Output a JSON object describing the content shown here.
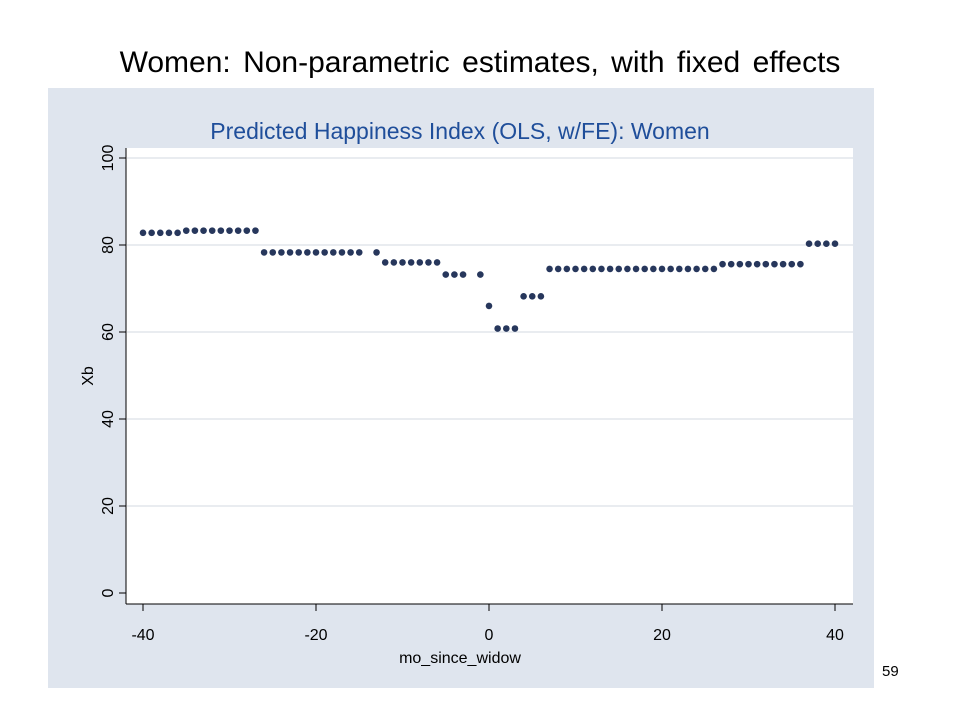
{
  "slide": {
    "title": "Women: Non-parametric estimates, with fixed effects",
    "page_number": "59"
  },
  "chart_data": {
    "type": "scatter",
    "title": "Predicted Happiness Index (OLS, w/FE): Women",
    "xlabel": "mo_since_widow",
    "ylabel": "Xb",
    "xlim": [
      -41,
      41
    ],
    "ylim": [
      0,
      102
    ],
    "xticks": [
      -40,
      -20,
      0,
      20,
      40
    ],
    "yticks": [
      0,
      20,
      40,
      60,
      80,
      100
    ],
    "grid": true,
    "colors": {
      "background": "#dfe5ee",
      "plot_region": "#ffffff",
      "marker": "#27375c",
      "title": "#1f4e9a"
    },
    "series": [
      {
        "points": [
          [
            -40,
            82.8
          ],
          [
            -39,
            82.8
          ],
          [
            -38,
            82.8
          ],
          [
            -37,
            82.8
          ],
          [
            -36,
            82.8
          ],
          [
            -35,
            83.3
          ],
          [
            -34,
            83.3
          ],
          [
            -33,
            83.3
          ],
          [
            -32,
            83.3
          ],
          [
            -31,
            83.3
          ],
          [
            -30,
            83.3
          ],
          [
            -29,
            83.3
          ],
          [
            -28,
            83.3
          ],
          [
            -27,
            83.3
          ],
          [
            -26,
            78.3
          ],
          [
            -25,
            78.3
          ],
          [
            -24,
            78.3
          ],
          [
            -23,
            78.3
          ],
          [
            -22,
            78.3
          ],
          [
            -21,
            78.3
          ],
          [
            -20,
            78.3
          ],
          [
            -19,
            78.3
          ],
          [
            -18,
            78.3
          ],
          [
            -17,
            78.3
          ],
          [
            -16,
            78.3
          ],
          [
            -15,
            78.3
          ],
          [
            -13,
            78.3
          ],
          [
            -12,
            76.0
          ],
          [
            -11,
            76.0
          ],
          [
            -10,
            76.0
          ],
          [
            -9,
            76.0
          ],
          [
            -8,
            76.0
          ],
          [
            -7,
            76.0
          ],
          [
            -6,
            76.0
          ],
          [
            -5,
            73.2
          ],
          [
            -4,
            73.2
          ],
          [
            -3,
            73.2
          ],
          [
            -1,
            73.2
          ],
          [
            0,
            66.0
          ],
          [
            1,
            60.8
          ],
          [
            2,
            60.8
          ],
          [
            3,
            60.8
          ],
          [
            4,
            68.2
          ],
          [
            5,
            68.2
          ],
          [
            6,
            68.2
          ],
          [
            7,
            74.5
          ],
          [
            8,
            74.5
          ],
          [
            9,
            74.5
          ],
          [
            10,
            74.5
          ],
          [
            11,
            74.5
          ],
          [
            12,
            74.5
          ],
          [
            13,
            74.5
          ],
          [
            14,
            74.5
          ],
          [
            15,
            74.5
          ],
          [
            16,
            74.5
          ],
          [
            17,
            74.5
          ],
          [
            18,
            74.5
          ],
          [
            19,
            74.5
          ],
          [
            20,
            74.5
          ],
          [
            21,
            74.5
          ],
          [
            22,
            74.5
          ],
          [
            23,
            74.5
          ],
          [
            24,
            74.5
          ],
          [
            25,
            74.5
          ],
          [
            26,
            74.5
          ],
          [
            27,
            75.6
          ],
          [
            28,
            75.6
          ],
          [
            29,
            75.6
          ],
          [
            30,
            75.6
          ],
          [
            31,
            75.6
          ],
          [
            32,
            75.6
          ],
          [
            33,
            75.6
          ],
          [
            34,
            75.6
          ],
          [
            35,
            75.6
          ],
          [
            36,
            75.6
          ],
          [
            37,
            80.3
          ],
          [
            38,
            80.3
          ],
          [
            39,
            80.3
          ],
          [
            40,
            80.3
          ]
        ]
      }
    ]
  }
}
